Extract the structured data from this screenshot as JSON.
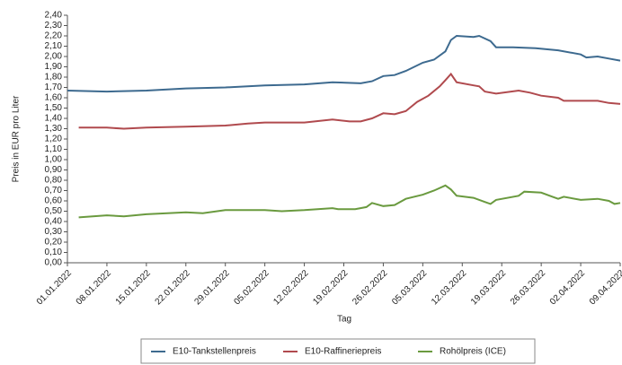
{
  "chart_data": {
    "type": "line",
    "y_label": "Preis in EUR pro Liter",
    "x_label": "Tag",
    "xlim": [
      "01.01.2022",
      "09.04.2022"
    ],
    "xticks": [
      "01.01.2022",
      "08.01.2022",
      "15.01.2022",
      "22.01.2022",
      "29.01.2022",
      "05.02.2022",
      "12.02.2022",
      "19.02.2022",
      "26.02.2022",
      "05.03.2022",
      "12.03.2022",
      "19.03.2022",
      "26.03.2022",
      "02.04.2022",
      "09.04.2022"
    ],
    "ylim": [
      0,
      2.4
    ],
    "yticks": [
      {
        "value": 0,
        "label": "0,00"
      },
      {
        "value": 0.1,
        "label": "0,10"
      },
      {
        "value": 0.2,
        "label": "0,20"
      },
      {
        "value": 0.3,
        "label": "0,30"
      },
      {
        "value": 0.4,
        "label": "0,40"
      },
      {
        "value": 0.5,
        "label": "0,50"
      },
      {
        "value": 0.6,
        "label": "0,60"
      },
      {
        "value": 0.7,
        "label": "0,70"
      },
      {
        "value": 0.8,
        "label": "0,80"
      },
      {
        "value": 0.9,
        "label": "0,90"
      },
      {
        "value": 1.0,
        "label": "1,00"
      },
      {
        "value": 1.1,
        "label": "1,10"
      },
      {
        "value": 1.2,
        "label": "1,20"
      },
      {
        "value": 1.3,
        "label": "1,30"
      },
      {
        "value": 1.4,
        "label": "1,40"
      },
      {
        "value": 1.5,
        "label": "1,50"
      },
      {
        "value": 1.6,
        "label": "1,60"
      },
      {
        "value": 1.7,
        "label": "1,70"
      },
      {
        "value": 1.8,
        "label": "1,80"
      },
      {
        "value": 1.9,
        "label": "1,90"
      },
      {
        "value": 2.0,
        "label": "2,00"
      },
      {
        "value": 2.1,
        "label": "2,10"
      },
      {
        "value": 2.2,
        "label": "2,20"
      },
      {
        "value": 2.3,
        "label": "2,30"
      },
      {
        "value": 2.4,
        "label": "2,40"
      }
    ],
    "legend": "bottom",
    "series": [
      {
        "name": "E10-Tankstellenpreis",
        "color": "#3d6a8f",
        "x": [
          "01.01.2022",
          "08.01.2022",
          "15.01.2022",
          "22.01.2022",
          "29.01.2022",
          "05.02.2022",
          "12.02.2022",
          "17.02.2022",
          "22.02.2022",
          "24.02.2022",
          "26.02.2022",
          "28.02.2022",
          "02.03.2022",
          "05.03.2022",
          "07.03.2022",
          "09.03.2022",
          "10.03.2022",
          "11.03.2022",
          "14.03.2022",
          "15.03.2022",
          "17.03.2022",
          "18.03.2022",
          "21.03.2022",
          "25.03.2022",
          "29.03.2022",
          "02.04.2022",
          "03.04.2022",
          "05.04.2022",
          "07.04.2022",
          "09.04.2022"
        ],
        "values": [
          1.67,
          1.66,
          1.67,
          1.69,
          1.7,
          1.72,
          1.73,
          1.75,
          1.74,
          1.76,
          1.81,
          1.82,
          1.86,
          1.94,
          1.97,
          2.05,
          2.16,
          2.2,
          2.19,
          2.2,
          2.15,
          2.09,
          2.09,
          2.08,
          2.06,
          2.02,
          1.99,
          2.0,
          1.98,
          1.96
        ]
      },
      {
        "name": "E10-Raffineriepreis",
        "color": "#b04a4e",
        "x": [
          "03.01.2022",
          "08.01.2022",
          "11.01.2022",
          "15.01.2022",
          "22.01.2022",
          "29.01.2022",
          "02.02.2022",
          "05.02.2022",
          "12.02.2022",
          "17.02.2022",
          "20.02.2022",
          "22.02.2022",
          "24.02.2022",
          "26.02.2022",
          "28.02.2022",
          "02.03.2022",
          "04.03.2022",
          "06.03.2022",
          "08.03.2022",
          "09.03.2022",
          "10.03.2022",
          "11.03.2022",
          "14.03.2022",
          "15.03.2022",
          "16.03.2022",
          "18.03.2022",
          "22.03.2022",
          "24.03.2022",
          "26.03.2022",
          "29.03.2022",
          "30.03.2022",
          "02.04.2022",
          "05.04.2022",
          "07.04.2022",
          "09.04.2022"
        ],
        "values": [
          1.31,
          1.31,
          1.3,
          1.31,
          1.32,
          1.33,
          1.35,
          1.36,
          1.36,
          1.39,
          1.37,
          1.37,
          1.4,
          1.45,
          1.44,
          1.47,
          1.56,
          1.62,
          1.71,
          1.77,
          1.83,
          1.75,
          1.72,
          1.71,
          1.66,
          1.64,
          1.67,
          1.65,
          1.62,
          1.6,
          1.57,
          1.57,
          1.57,
          1.55,
          1.54
        ]
      },
      {
        "name": "Rohölpreis (ICE)",
        "color": "#6a9a3f",
        "x": [
          "03.01.2022",
          "08.01.2022",
          "11.01.2022",
          "15.01.2022",
          "22.01.2022",
          "25.01.2022",
          "29.01.2022",
          "02.02.2022",
          "05.02.2022",
          "08.02.2022",
          "12.02.2022",
          "17.02.2022",
          "18.02.2022",
          "21.02.2022",
          "23.02.2022",
          "24.02.2022",
          "26.02.2022",
          "28.02.2022",
          "02.03.2022",
          "05.03.2022",
          "07.03.2022",
          "09.03.2022",
          "10.03.2022",
          "11.03.2022",
          "14.03.2022",
          "16.03.2022",
          "17.03.2022",
          "18.03.2022",
          "22.03.2022",
          "23.03.2022",
          "26.03.2022",
          "28.03.2022",
          "29.03.2022",
          "30.03.2022",
          "02.04.2022",
          "05.04.2022",
          "07.04.2022",
          "08.04.2022",
          "09.04.2022"
        ],
        "values": [
          0.44,
          0.46,
          0.45,
          0.47,
          0.49,
          0.48,
          0.51,
          0.51,
          0.51,
          0.5,
          0.51,
          0.53,
          0.52,
          0.52,
          0.54,
          0.58,
          0.55,
          0.56,
          0.62,
          0.66,
          0.7,
          0.75,
          0.71,
          0.65,
          0.63,
          0.59,
          0.57,
          0.61,
          0.65,
          0.69,
          0.68,
          0.64,
          0.62,
          0.64,
          0.61,
          0.62,
          0.6,
          0.57,
          0.58
        ]
      }
    ]
  }
}
